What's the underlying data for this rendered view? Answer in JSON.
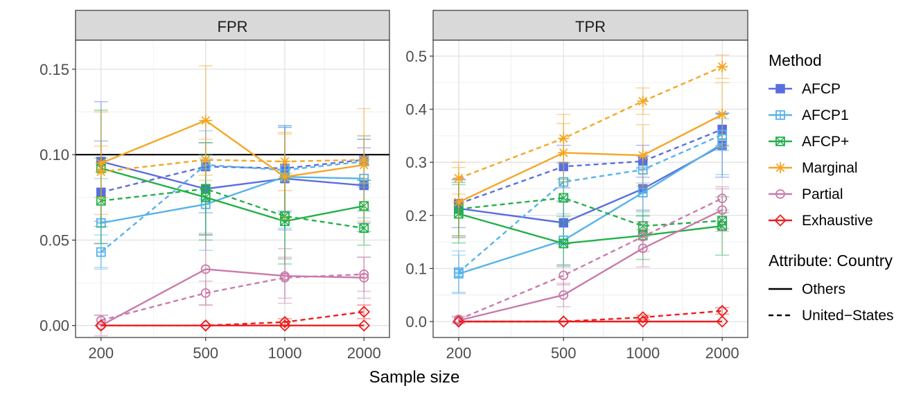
{
  "chart_data": {
    "type": "line",
    "xlabel": "Sample size",
    "x": [
      200,
      500,
      1000,
      2000
    ],
    "x_tick_labels": [
      "200",
      "500",
      "1000",
      "2000"
    ],
    "x_scale": "log",
    "legend": {
      "method_title": "Method",
      "linetype_title": "Attribute: Country",
      "linetypes": [
        {
          "name": "Others",
          "dash": "solid"
        },
        {
          "name": "United−States",
          "dash": "dashed"
        }
      ]
    },
    "methods": [
      {
        "name": "AFCP",
        "color": "#5a6ee0",
        "marker": "square-filled"
      },
      {
        "name": "AFCP1",
        "color": "#56b3e9",
        "marker": "square-plus"
      },
      {
        "name": "AFCP+",
        "color": "#22b04a",
        "marker": "square-x"
      },
      {
        "name": "Marginal",
        "color": "#f5a623",
        "marker": "asterisk"
      },
      {
        "name": "Partial",
        "color": "#c97aaa",
        "marker": "circle-open"
      },
      {
        "name": "Exhaustive",
        "color": "#ee1c1c",
        "marker": "diamond-open"
      }
    ],
    "panels": [
      {
        "title": "FPR",
        "ylim": [
          -0.007,
          0.167
        ],
        "yticks": [
          0.0,
          0.05,
          0.1,
          0.15
        ],
        "ytick_labels": [
          "0.00",
          "0.05",
          "0.10",
          "0.15"
        ],
        "hline": 0.1,
        "series": [
          {
            "method": "AFCP",
            "country": "Others",
            "values": [
              0.096,
              0.08,
              0.086,
              0.082
            ],
            "err": [
              0.035,
              0.027,
              0.03,
              0.022
            ]
          },
          {
            "method": "AFCP",
            "country": "United−States",
            "values": [
              0.078,
              0.093,
              0.092,
              0.097
            ],
            "err": [
              0.03,
              0.027,
              0.025,
              0.012
            ]
          },
          {
            "method": "AFCP1",
            "country": "Others",
            "values": [
              0.06,
              0.071,
              0.087,
              0.086
            ],
            "err": [
              0.026,
              0.027,
              0.03,
              0.023
            ]
          },
          {
            "method": "AFCP1",
            "country": "United−States",
            "values": [
              0.043,
              0.094,
              0.091,
              0.096
            ],
            "err": [
              0.01,
              0.02,
              0.025,
              0.015
            ]
          },
          {
            "method": "AFCP+",
            "country": "Others",
            "values": [
              0.092,
              0.075,
              0.061,
              0.07
            ],
            "err": [
              0.034,
              0.025,
              0.025,
              0.015
            ]
          },
          {
            "method": "AFCP+",
            "country": "United−States",
            "values": [
              0.073,
              0.08,
              0.064,
              0.057
            ],
            "err": [
              0.025,
              0.027,
              0.025,
              0.01
            ]
          },
          {
            "method": "Marginal",
            "country": "Others",
            "values": [
              0.095,
              0.12,
              0.087,
              0.094
            ],
            "err": [
              0.03,
              0.032,
              0.025,
              0.033
            ]
          },
          {
            "method": "Marginal",
            "country": "United−States",
            "values": [
              0.09,
              0.097,
              0.096,
              0.097
            ],
            "err": [
              0.015,
              0.012,
              0.017,
              0.014
            ]
          },
          {
            "method": "Partial",
            "country": "Others",
            "values": [
              0.0,
              0.033,
              0.029,
              0.028
            ],
            "err": [
              0.006,
              0.021,
              0.016,
              0.012
            ]
          },
          {
            "method": "Partial",
            "country": "United−States",
            "values": [
              0.003,
              0.019,
              0.028,
              0.03
            ],
            "err": [
              0.003,
              0.007,
              0.012,
              0.01
            ]
          },
          {
            "method": "Exhaustive",
            "country": "Others",
            "values": [
              0.0,
              0.0,
              0.0,
              0.0
            ],
            "err": [
              0,
              0,
              0,
              0
            ]
          },
          {
            "method": "Exhaustive",
            "country": "United−States",
            "values": [
              0.0,
              0.0,
              0.002,
              0.008
            ],
            "err": [
              0,
              0,
              0.002,
              0.004
            ]
          }
        ]
      },
      {
        "title": "TPR",
        "ylim": [
          -0.03,
          0.53
        ],
        "yticks": [
          0.0,
          0.1,
          0.2,
          0.3,
          0.4,
          0.5
        ],
        "ytick_labels": [
          "0.0",
          "0.1",
          "0.2",
          "0.3",
          "0.4",
          "0.5"
        ],
        "hline": null,
        "series": [
          {
            "method": "AFCP",
            "country": "Others",
            "values": [
              0.213,
              0.186,
              0.25,
              0.332
            ],
            "err": [
              0.055,
              0.04,
              0.04,
              0.06
            ]
          },
          {
            "method": "AFCP",
            "country": "United−States",
            "values": [
              0.222,
              0.292,
              0.302,
              0.362
            ],
            "err": [
              0.045,
              0.04,
              0.03,
              0.03
            ]
          },
          {
            "method": "AFCP1",
            "country": "Others",
            "values": [
              0.09,
              0.153,
              0.243,
              0.335
            ],
            "err": [
              0.035,
              0.05,
              0.045,
              0.058
            ]
          },
          {
            "method": "AFCP1",
            "country": "United−States",
            "values": [
              0.093,
              0.263,
              0.286,
              0.352
            ],
            "err": [
              0.04,
              0.035,
              0.025,
              0.03
            ]
          },
          {
            "method": "AFCP+",
            "country": "Others",
            "values": [
              0.203,
              0.147,
              0.162,
              0.18
            ],
            "err": [
              0.055,
              0.04,
              0.045,
              0.055
            ]
          },
          {
            "method": "AFCP+",
            "country": "United−States",
            "values": [
              0.212,
              0.233,
              0.18,
              0.19
            ],
            "err": [
              0.05,
              0.035,
              0.02,
              0.015
            ]
          },
          {
            "method": "Marginal",
            "country": "Others",
            "values": [
              0.225,
              0.318,
              0.313,
              0.39
            ],
            "err": [
              0.065,
              0.055,
              0.058,
              0.06
            ]
          },
          {
            "method": "Marginal",
            "country": "United−States",
            "values": [
              0.27,
              0.345,
              0.415,
              0.48
            ],
            "err": [
              0.03,
              0.045,
              0.025,
              0.022
            ]
          },
          {
            "method": "Partial",
            "country": "Others",
            "values": [
              0.002,
              0.05,
              0.138,
              0.21
            ],
            "err": [
              0.006,
              0.022,
              0.035,
              0.04
            ]
          },
          {
            "method": "Partial",
            "country": "United−States",
            "values": [
              0.004,
              0.087,
              0.16,
              0.232
            ],
            "err": [
              0.006,
              0.018,
              0.028,
              0.022
            ]
          },
          {
            "method": "Exhaustive",
            "country": "Others",
            "values": [
              0.0,
              0.0,
              0.0,
              0.0
            ],
            "err": [
              0,
              0,
              0,
              0
            ]
          },
          {
            "method": "Exhaustive",
            "country": "United−States",
            "values": [
              0.0,
              0.0,
              0.008,
              0.02
            ],
            "err": [
              0,
              0,
              0.004,
              0.006
            ]
          }
        ]
      }
    ]
  }
}
